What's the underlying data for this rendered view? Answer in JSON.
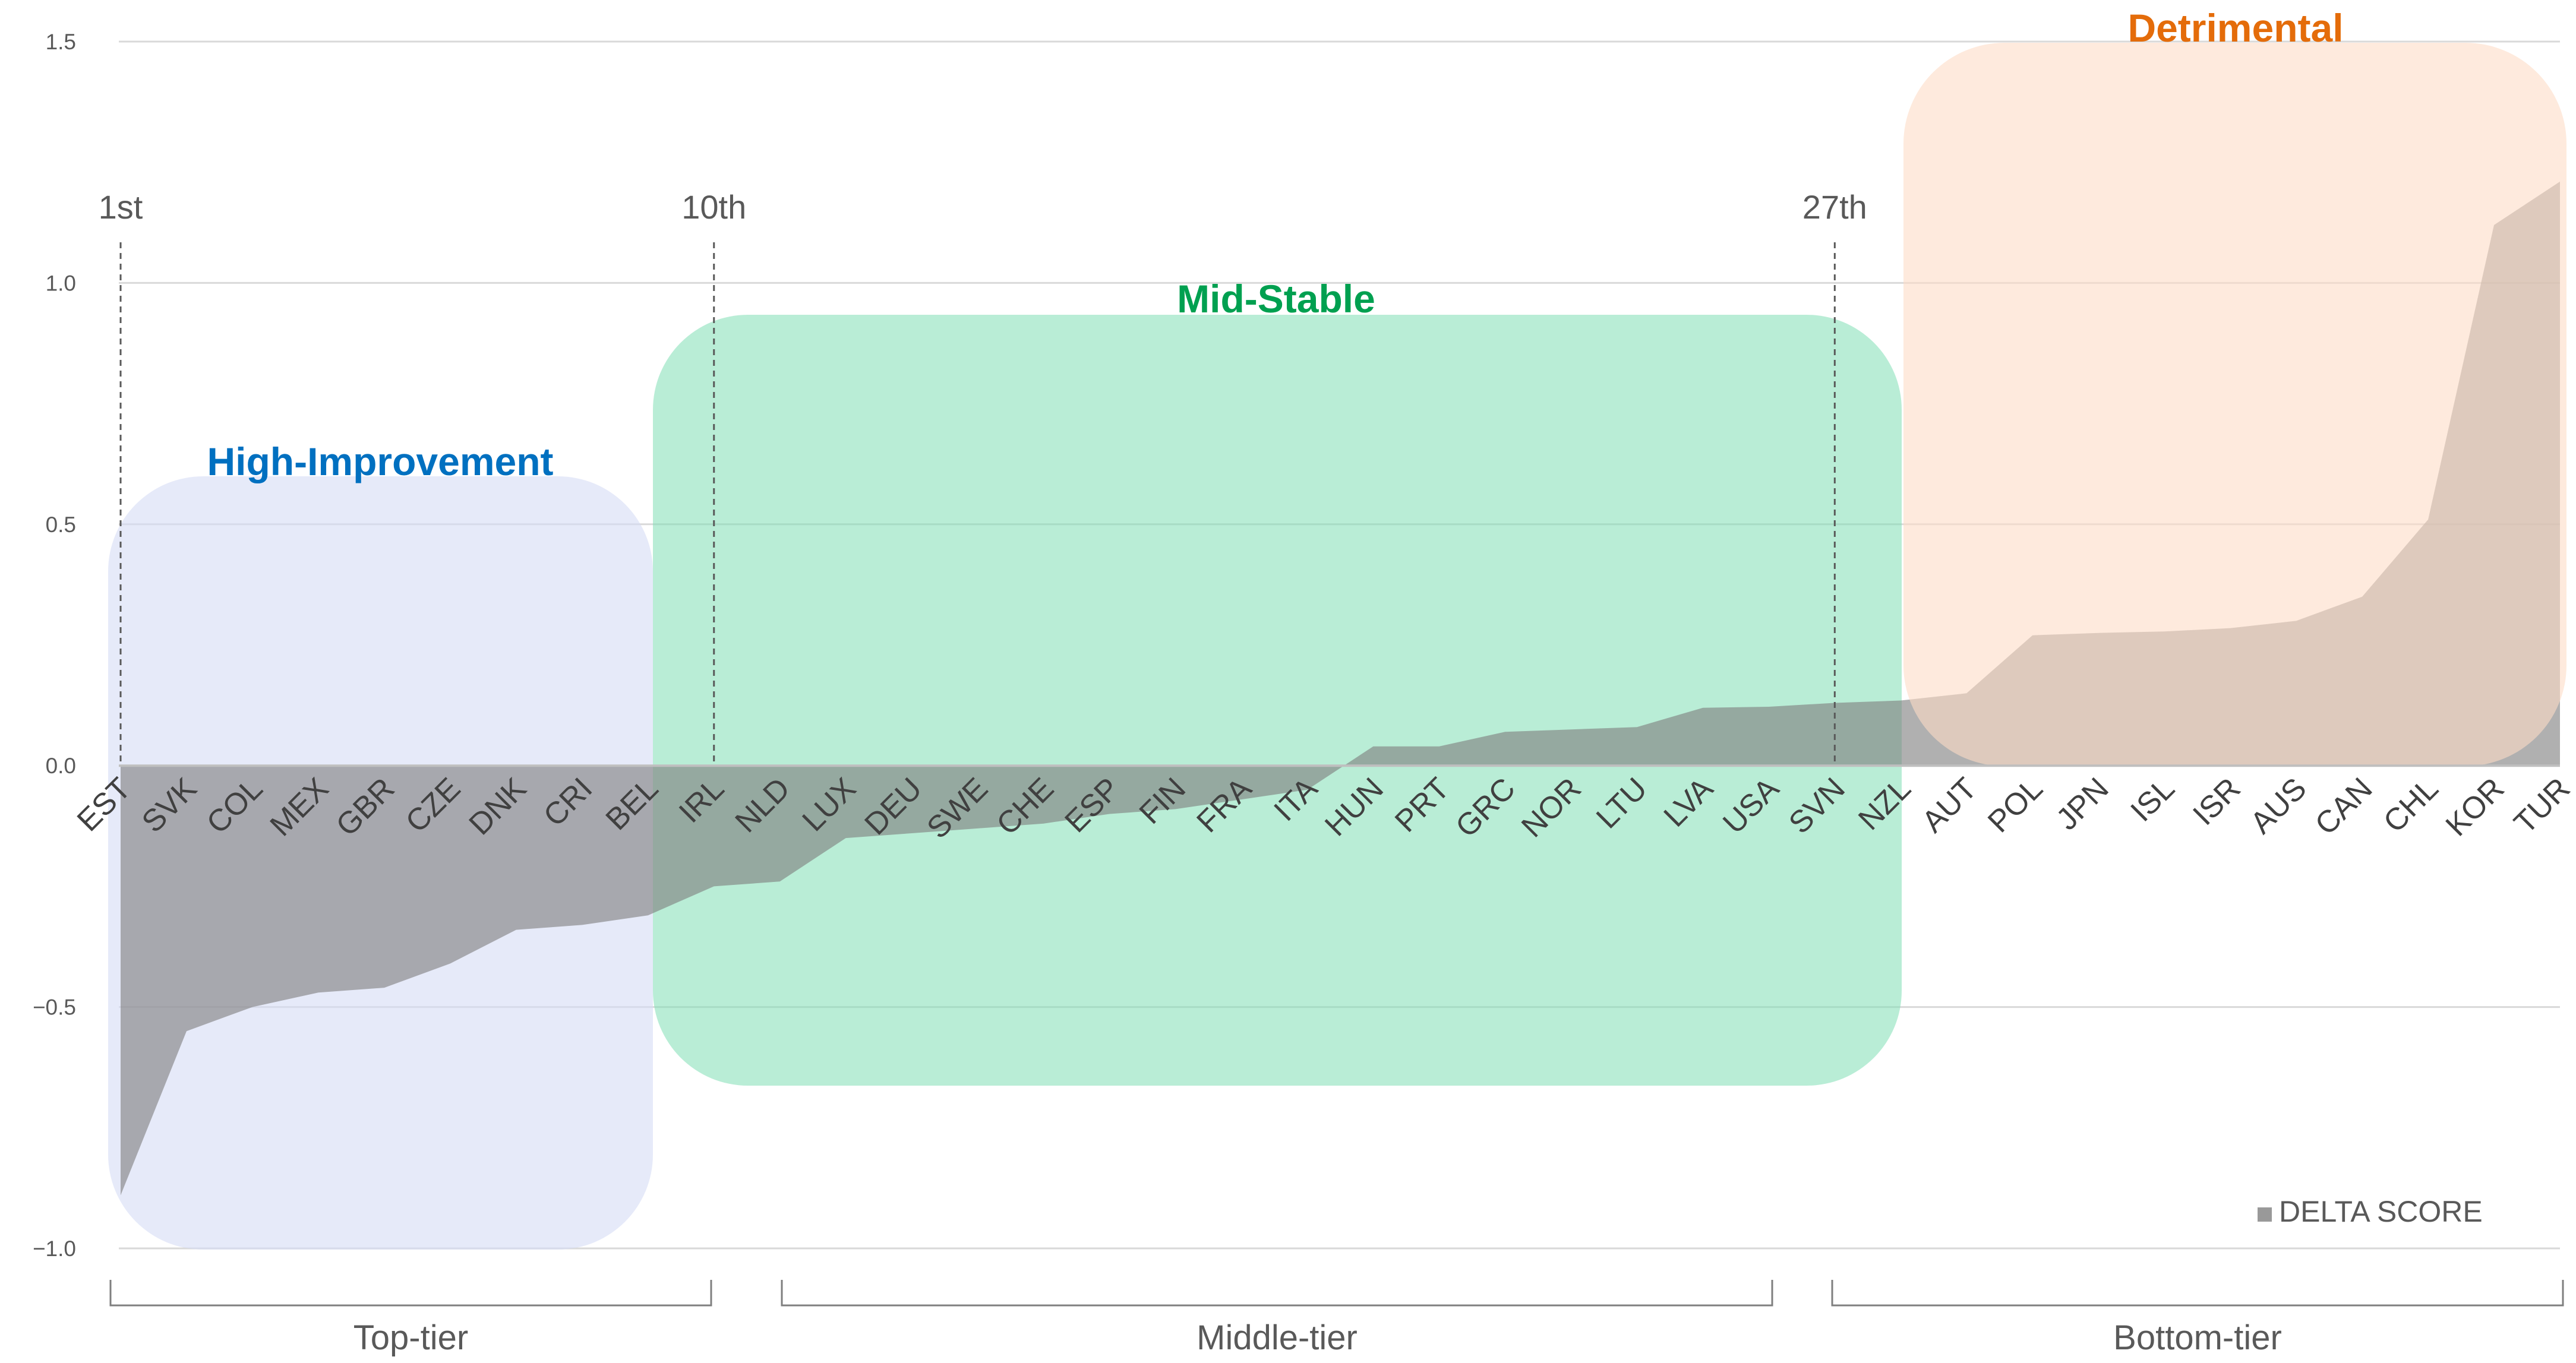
{
  "chart_data": {
    "type": "area",
    "categories": [
      "EST",
      "SVK",
      "COL",
      "MEX",
      "GBR",
      "CZE",
      "DNK",
      "CRI",
      "BEL",
      "IRL",
      "NLD",
      "LUX",
      "DEU",
      "SWE",
      "CHE",
      "ESP",
      "FIN",
      "FRA",
      "ITA",
      "HUN",
      "PRT",
      "GRC",
      "NOR",
      "LTU",
      "LVA",
      "USA",
      "SVN",
      "NZL",
      "AUT",
      "POL",
      "JPN",
      "ISL",
      "ISR",
      "AUS",
      "CAN",
      "CHL",
      "KOR",
      "TUR"
    ],
    "series": [
      {
        "name": "DELTA SCORE",
        "values": [
          -0.89,
          -0.55,
          -0.5,
          -0.47,
          -0.46,
          -0.41,
          -0.34,
          -0.33,
          -0.31,
          -0.25,
          -0.24,
          -0.15,
          -0.14,
          -0.13,
          -0.12,
          -0.1,
          -0.09,
          -0.07,
          -0.05,
          0.04,
          0.04,
          0.07,
          0.075,
          0.08,
          0.12,
          0.122,
          0.13,
          0.135,
          0.15,
          0.27,
          0.275,
          0.278,
          0.285,
          0.3,
          0.35,
          0.51,
          1.12,
          1.21
        ]
      }
    ],
    "yticks": [
      "1.5",
      "1.0",
      "0.5",
      "0.0",
      "−0.5",
      "−1.0"
    ],
    "ylim": [
      -1.0,
      1.5
    ],
    "grid": true,
    "legend": {
      "position": "bottom-right",
      "label": "DELTA SCORE"
    },
    "rank_markers": [
      {
        "label": "1st",
        "index": 0
      },
      {
        "label": "10th",
        "index": 9
      },
      {
        "label": "27th",
        "index": 26
      }
    ],
    "zones": [
      {
        "title": "High-Improvement",
        "color": "#d5dcf5",
        "title_color": "#0070c0"
      },
      {
        "title": "Mid-Stable",
        "color": "#7fdfb4",
        "title_color": "#00a050"
      },
      {
        "title": "Detrimental",
        "color": "#fddcc7",
        "title_color": "#e46c0a"
      }
    ],
    "tiers": [
      {
        "label": "Top-tier"
      },
      {
        "label": "Middle-tier"
      },
      {
        "label": "Bottom-tier"
      }
    ],
    "series_color": "#7f7f7f"
  }
}
